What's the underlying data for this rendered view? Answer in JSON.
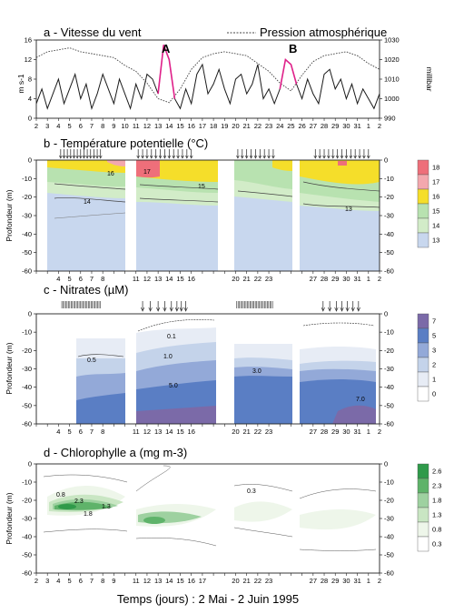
{
  "chart_data": [
    {
      "type": "line",
      "title": "a - Vitesse du vent",
      "legend": "Pression atmosphérique",
      "ylabel_left": "m s-1",
      "ylabel_right": "millibar",
      "ylim_left": [
        0,
        16
      ],
      "ylim_right": [
        990,
        1030
      ],
      "yticks_left": [
        "0",
        "4",
        "8",
        "12",
        "16"
      ],
      "yticks_right": [
        "990",
        "1000",
        "1010",
        "1020",
        "1030"
      ],
      "xticks": [
        "2",
        "3",
        "4",
        "5",
        "6",
        "7",
        "8",
        "9",
        "10",
        "11",
        "12",
        "13",
        "14",
        "15",
        "16",
        "17",
        "18",
        "19",
        "20",
        "21",
        "22",
        "23",
        "24",
        "25",
        "26",
        "27",
        "28",
        "29",
        "30",
        "31",
        "1",
        "2"
      ],
      "events": [
        {
          "label": "A",
          "day": 13.3
        },
        {
          "label": "B",
          "day": 24.6
        }
      ],
      "colors": {
        "wind": "#1a1a1a",
        "event": "#e0218a",
        "pressure": "#444444"
      },
      "series": [
        {
          "name": "Vitesse du vent",
          "unit": "m s-1",
          "x": [
            2,
            2.5,
            3,
            3.5,
            4,
            4.5,
            5,
            5.5,
            6,
            6.5,
            7,
            7.5,
            8,
            8.5,
            9,
            9.5,
            10,
            10.5,
            11,
            11.5,
            12,
            12.5,
            13,
            13.5,
            14,
            14.5,
            15,
            15.5,
            16,
            16.5,
            17,
            17.5,
            18,
            18.5,
            19,
            19.5,
            20,
            20.5,
            21,
            21.5,
            22,
            22.5,
            23,
            23.5,
            24,
            24.5,
            25,
            25.5,
            26,
            26.5,
            27,
            27.5,
            28,
            28.5,
            29,
            29.5,
            30,
            30.5,
            31,
            31.5,
            32,
            32.5,
            33
          ],
          "y": [
            3,
            6,
            2,
            5,
            8,
            3,
            6,
            9,
            4,
            7,
            2,
            5,
            9,
            6,
            3,
            8,
            5,
            2,
            7,
            4,
            9,
            8,
            5,
            15,
            12,
            4,
            2,
            6,
            3,
            9,
            11,
            5,
            7,
            10,
            6,
            3,
            8,
            9,
            5,
            7,
            11,
            4,
            6,
            3,
            6,
            12,
            11,
            7,
            4,
            8,
            5,
            3,
            9,
            10,
            6,
            8,
            4,
            7,
            3,
            6,
            4,
            2,
            5
          ]
        },
        {
          "name": "Pression atmosphérique",
          "unit": "millibar",
          "x": [
            2,
            3,
            4,
            5,
            6,
            7,
            8,
            9,
            10,
            11,
            12,
            13,
            14,
            15,
            16,
            17,
            18,
            19,
            20,
            21,
            22,
            23,
            24,
            25,
            26,
            27,
            28,
            29,
            30,
            31,
            32,
            33
          ],
          "y": [
            1021,
            1024,
            1025,
            1026,
            1024,
            1023,
            1022,
            1021,
            1017,
            1014,
            1008,
            1000,
            998,
            1005,
            1015,
            1021,
            1023,
            1024,
            1023,
            1022,
            1018,
            1014,
            1008,
            1004,
            1012,
            1019,
            1022,
            1023,
            1024,
            1022,
            1018,
            1015
          ]
        }
      ]
    },
    {
      "type": "heatmap",
      "title": "b - Température potentielle (°C)",
      "ylabel": "Profondeur (m)",
      "ylim": [
        -60,
        0
      ],
      "yticks": [
        "0",
        "-10",
        "-20",
        "-30",
        "-40",
        "-50",
        "-60"
      ],
      "xtick_groups": [
        [
          "4",
          "5",
          "6",
          "7",
          "8"
        ],
        [
          "11",
          "12",
          "13",
          "14",
          "15",
          "16"
        ],
        [
          "20",
          "21",
          "22",
          "23"
        ],
        [
          "27",
          "28",
          "29",
          "30",
          "31",
          "1",
          "2"
        ]
      ],
      "colorbar": {
        "labels": [
          "18",
          "17",
          "16",
          "15",
          "14",
          "13"
        ],
        "colors": [
          "#ee6f7a",
          "#f3a8ae",
          "#f5de2a",
          "#b8e2b0",
          "#d2ecc8",
          "#c8d7ee"
        ]
      },
      "contour_labels": [
        "17",
        "16",
        "15",
        "14",
        "13"
      ],
      "profile_days": [
        4.2,
        4.5,
        4.8,
        5.1,
        5.4,
        5.7,
        6,
        6.3,
        6.6,
        6.9,
        7.2,
        7.5,
        7.8,
        11.2,
        11.6,
        12,
        12.4,
        12.8,
        13.2,
        13.6,
        14,
        14.4,
        14.8,
        15.2,
        15.6,
        16,
        20.2,
        20.6,
        21,
        21.4,
        21.8,
        22.2,
        22.6,
        23,
        23.4,
        27.2,
        27.6,
        28,
        28.4,
        28.8,
        29.2,
        29.6,
        30,
        30.4,
        30.8,
        31.2,
        31.6,
        32
      ]
    },
    {
      "type": "heatmap",
      "title": "c - Nitrates (µM)",
      "ylabel": "Profondeur (m)",
      "ylim": [
        -60,
        0
      ],
      "yticks": [
        "0",
        "-10",
        "-20",
        "-30",
        "-40",
        "-50",
        "-60"
      ],
      "xtick_groups": [
        [
          "4",
          "5",
          "6",
          "7",
          "8"
        ],
        [
          "11",
          "12",
          "13",
          "14",
          "15",
          "16"
        ],
        [
          "20",
          "21",
          "22",
          "23"
        ],
        [
          "27",
          "28",
          "29",
          "30",
          "31",
          "1",
          "2"
        ]
      ],
      "colorbar": {
        "labels": [
          "7",
          "5",
          "3",
          "2",
          "1",
          "0"
        ],
        "colors": [
          "#7b6aa8",
          "#5a7ec4",
          "#93a9d8",
          "#c4d3ea",
          "#e7ecf5",
          "#ffffff"
        ]
      },
      "contour_labels": [
        "0.1",
        "0.5",
        "1.0",
        "3.0",
        "5.0",
        "7.0"
      ],
      "profile_days": [
        11.6,
        12.3,
        13,
        13.6,
        14.2,
        14.7,
        15.1,
        15.5,
        27.9,
        28.5,
        29.1,
        29.6,
        30.1,
        30.6,
        31.1
      ]
    },
    {
      "type": "heatmap",
      "title": "d - Chlorophylle a (mg m-3)",
      "ylabel": "Profondeur (m)",
      "ylim": [
        -60,
        0
      ],
      "yticks": [
        "0",
        "-10",
        "-20",
        "-30",
        "-40",
        "-50",
        "-60"
      ],
      "xtick_groups": [
        [
          "2",
          "3",
          "4",
          "5",
          "6",
          "7",
          "8",
          "9"
        ],
        [
          "11",
          "12",
          "13",
          "14",
          "15",
          "16",
          "17"
        ],
        [
          "20",
          "21",
          "22",
          "23"
        ],
        [
          "27",
          "28",
          "29",
          "30",
          "31",
          "1",
          "2"
        ]
      ],
      "colorbar": {
        "labels": [
          "2.6",
          "2.3",
          "1.8",
          "1.3",
          "0.8",
          "0.3"
        ],
        "colors": [
          "#2f9a4a",
          "#5fb36a",
          "#9ed1a0",
          "#c9e6c3",
          "#eef6ea",
          "#ffffff"
        ]
      },
      "contour_labels": [
        "0.3",
        "0.8",
        "1.3",
        "1.8",
        "2.3"
      ],
      "xlabel": "Temps (jours) : 2 Mai - 2 Juin 1995"
    }
  ]
}
